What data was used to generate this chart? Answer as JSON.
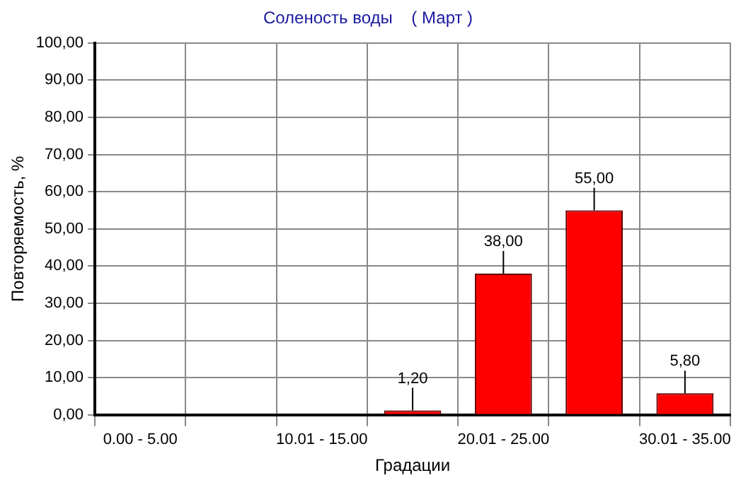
{
  "chart_data": {
    "type": "bar",
    "title": "Соленость воды    ( Март )",
    "xlabel": "Градации",
    "ylabel": "Повторяемость, %",
    "categories": [
      "0.00 - 5.00",
      null,
      "10.01 - 15.00",
      null,
      "20.01 - 25.00",
      null,
      "30.01 - 35.00"
    ],
    "values": [
      null,
      null,
      null,
      1.2,
      38,
      55,
      5.8
    ],
    "value_labels": [
      null,
      null,
      null,
      "1,20",
      "38,00",
      "55,00",
      "5,80"
    ],
    "color": "#ff0000",
    "ylim": [
      0,
      100
    ],
    "yticks": [
      {
        "value": 0,
        "label": "0,00"
      },
      {
        "value": 10,
        "label": "10,00"
      },
      {
        "value": 20,
        "label": "20,00"
      },
      {
        "value": 30,
        "label": "30,00"
      },
      {
        "value": 40,
        "label": "40,00"
      },
      {
        "value": 50,
        "label": "50,00"
      },
      {
        "value": 60,
        "label": "60,00"
      },
      {
        "value": 70,
        "label": "70,00"
      },
      {
        "value": 80,
        "label": "80,00"
      },
      {
        "value": 90,
        "label": "90,00"
      },
      {
        "value": 100,
        "label": "100,00"
      }
    ],
    "grid": true,
    "legend": false
  }
}
